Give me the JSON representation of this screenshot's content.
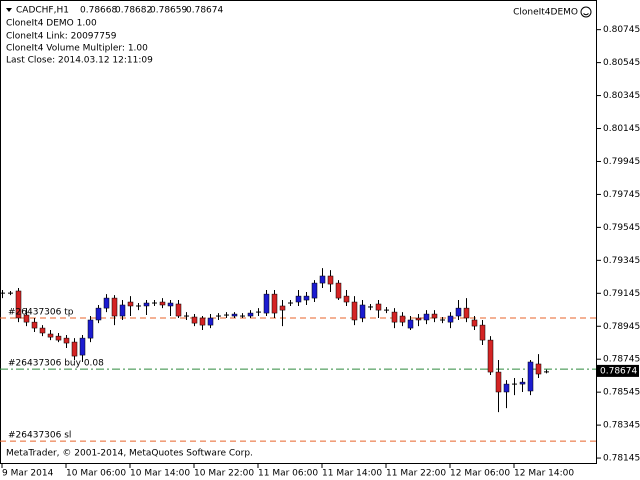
{
  "chart_data": {
    "type": "candlestick",
    "symbol": "CADCHF,H1",
    "info": [
      "CloneIt4 DEMO 1.00",
      "CloneIt4 Link: 20097759",
      "CloneIt4 Volume Multipler: 1.00",
      "Last Close: 2014.03.12 12:11:09"
    ],
    "expert": "CloneIt4DEMO",
    "footer": "MetaTrader, © 2001-2014, MetaQuotes Software Corp.",
    "categories": [
      "9 Mar 2014",
      null,
      null,
      null,
      null,
      null,
      null,
      null,
      "10 Mar 06:00",
      null,
      null,
      null,
      null,
      null,
      null,
      null,
      "10 Mar 14:00",
      null,
      null,
      null,
      null,
      null,
      null,
      null,
      "10 Mar 22:00",
      null,
      null,
      null,
      null,
      null,
      null,
      null,
      "11 Mar 06:00",
      null,
      null,
      null,
      null,
      null,
      null,
      null,
      "11 Mar 14:00",
      null,
      null,
      null,
      null,
      null,
      null,
      null,
      "11 Mar 22:00",
      null,
      null,
      null,
      null,
      null,
      null,
      null,
      "12 Mar 06:00",
      null,
      null,
      null,
      null,
      null,
      null,
      null,
      "12 Mar 14:00",
      null,
      null,
      null,
      null
    ],
    "open": [
      0.79146,
      0.79146,
      0.79159,
      0.79013,
      0.7897,
      0.78934,
      0.78898,
      0.78885,
      0.78873,
      0.78849,
      0.7877,
      0.78873,
      0.78983,
      0.79055,
      0.79116,
      0.79007,
      0.79092,
      0.79068,
      0.79068,
      0.79086,
      0.79092,
      0.79068,
      0.7908,
      0.79007,
      0.79001,
      0.78995,
      0.78952,
      0.79007,
      0.79013,
      0.79007,
      0.79007,
      0.79007,
      0.79031,
      0.79025,
      0.7914,
      0.79068,
      0.79086,
      0.79092,
      0.79104,
      0.79116,
      0.79207,
      0.7925,
      0.79207,
      0.79128,
      0.79092,
      0.78995,
      0.79062,
      0.7908,
      0.79043,
      0.79031,
      0.79007,
      0.78934,
      0.78995,
      0.78983,
      0.79019,
      0.78983,
      0.7897,
      0.79007,
      0.79055,
      0.78983,
      0.78952,
      0.78861,
      0.78667,
      0.78546,
      0.78594,
      0.78594,
      0.78552,
      0.78716,
      0.78668
    ],
    "high": [
      0.79165,
      0.79159,
      0.79177,
      0.79055,
      0.78995,
      0.78952,
      0.78922,
      0.78904,
      0.78892,
      0.78873,
      0.78892,
      0.79007,
      0.79074,
      0.7914,
      0.79134,
      0.79104,
      0.79128,
      0.79086,
      0.79104,
      0.79104,
      0.79116,
      0.79104,
      0.79104,
      0.79031,
      0.79019,
      0.79007,
      0.79019,
      0.79025,
      0.79031,
      0.79031,
      0.79025,
      0.79043,
      0.79055,
      0.79165,
      0.79165,
      0.79104,
      0.79104,
      0.79165,
      0.79153,
      0.79225,
      0.79298,
      0.79286,
      0.79225,
      0.79165,
      0.79128,
      0.79104,
      0.7908,
      0.79104,
      0.79062,
      0.79055,
      0.79031,
      0.79007,
      0.79019,
      0.79043,
      0.79043,
      0.79001,
      0.79031,
      0.79104,
      0.79116,
      0.79007,
      0.78983,
      0.78885,
      0.7874,
      0.78618,
      0.78631,
      0.78631,
      0.7874,
      0.78776,
      0.78682
    ],
    "low": [
      0.79116,
      0.79134,
      0.7897,
      0.78946,
      0.7891,
      0.78885,
      0.78861,
      0.78849,
      0.78813,
      0.7874,
      0.78728,
      0.78849,
      0.78964,
      0.79031,
      0.78952,
      0.78983,
      0.79007,
      0.79043,
      0.79013,
      0.79068,
      0.79055,
      0.79007,
      0.78995,
      0.78983,
      0.78946,
      0.78922,
      0.78934,
      0.78983,
      0.78995,
      0.78995,
      0.78995,
      0.78995,
      0.79007,
      0.79007,
      0.78995,
      0.78946,
      0.79068,
      0.79068,
      0.79074,
      0.79092,
      0.79177,
      0.79153,
      0.79104,
      0.79068,
      0.78952,
      0.7897,
      0.79043,
      0.78995,
      0.79025,
      0.78934,
      0.78946,
      0.78922,
      0.78946,
      0.78958,
      0.7897,
      0.78964,
      0.78934,
      0.78983,
      0.7897,
      0.78922,
      0.78831,
      0.78649,
      0.78424,
      0.78448,
      0.78527,
      0.78546,
      0.78527,
      0.78631,
      0.78659
    ],
    "close": [
      0.79146,
      0.7914,
      0.78995,
      0.7897,
      0.78934,
      0.78904,
      0.78879,
      0.78861,
      0.78843,
      0.78764,
      0.78873,
      0.78983,
      0.79055,
      0.79116,
      0.79007,
      0.79074,
      0.79068,
      0.79074,
      0.79086,
      0.79086,
      0.79074,
      0.79086,
      0.79007,
      0.79001,
      0.78964,
      0.78952,
      0.78995,
      0.79007,
      0.79013,
      0.79019,
      0.79007,
      0.79025,
      0.79031,
      0.7914,
      0.79025,
      0.79043,
      0.79086,
      0.79128,
      0.79128,
      0.79207,
      0.7925,
      0.79201,
      0.79116,
      0.79092,
      0.78983,
      0.79074,
      0.79062,
      0.79043,
      0.79043,
      0.7897,
      0.7897,
      0.78983,
      0.78983,
      0.79019,
      0.78995,
      0.78983,
      0.79007,
      0.79055,
      0.78995,
      0.78946,
      0.78861,
      0.78667,
      0.78546,
      0.78594,
      0.786,
      0.78606,
      0.78728,
      0.78655,
      0.78674
    ],
    "up_color": "#1c1cd0",
    "down_color": "#d42424",
    "levels": [
      {
        "label": "#26437306 tp",
        "value": 0.78995,
        "color": "#e8632a"
      },
      {
        "label": "#26437306 buy 0.08",
        "value": 0.78685,
        "color": "#2e8b3e"
      },
      {
        "label": "#26437306 sl",
        "value": 0.78248,
        "color": "#e8632a"
      }
    ],
    "ylim": [
      0.78109,
      0.80925
    ],
    "yticks": [
      0.80745,
      0.80545,
      0.80345,
      0.80145,
      0.79945,
      0.79745,
      0.79545,
      0.79345,
      0.79145,
      0.78945,
      0.78745,
      0.78545,
      0.78345,
      0.78145
    ]
  }
}
